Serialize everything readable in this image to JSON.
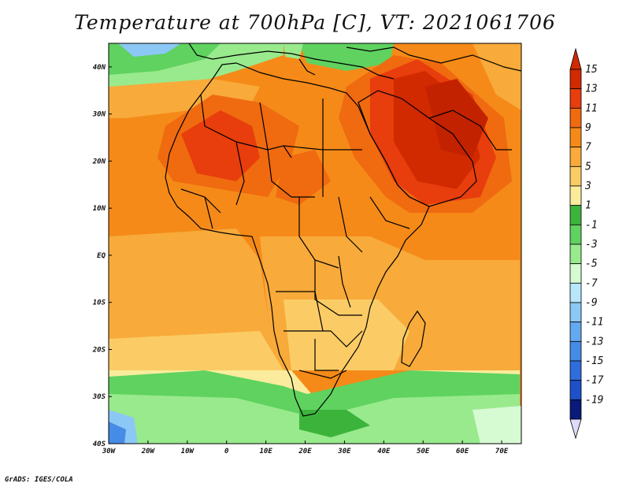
{
  "title": "Temperature at 700hPa [C], VT: 2021061706",
  "credit": "GrADS: IGES/COLA",
  "map": {
    "lon_range": [
      -30,
      75
    ],
    "lat_range": [
      -40,
      45
    ],
    "lon_ticks": [
      {
        "value": -30,
        "label": "30W"
      },
      {
        "value": -20,
        "label": "20W"
      },
      {
        "value": -10,
        "label": "10W"
      },
      {
        "value": 0,
        "label": "0"
      },
      {
        "value": 10,
        "label": "10E"
      },
      {
        "value": 20,
        "label": "20E"
      },
      {
        "value": 30,
        "label": "30E"
      },
      {
        "value": 40,
        "label": "40E"
      },
      {
        "value": 50,
        "label": "50E"
      },
      {
        "value": 60,
        "label": "60E"
      },
      {
        "value": 70,
        "label": "70E"
      }
    ],
    "lat_ticks": [
      {
        "value": 40,
        "label": "40N"
      },
      {
        "value": 30,
        "label": "30N"
      },
      {
        "value": 20,
        "label": "20N"
      },
      {
        "value": 10,
        "label": "10N"
      },
      {
        "value": 0,
        "label": "EQ"
      },
      {
        "value": -10,
        "label": "10S"
      },
      {
        "value": -20,
        "label": "20S"
      },
      {
        "value": -30,
        "label": "30S"
      },
      {
        "value": -40,
        "label": "40S"
      }
    ]
  },
  "colorbar": {
    "levels": [
      {
        "label": "15",
        "color": "#d12a00"
      },
      {
        "label": "13",
        "color": "#e83d0c"
      },
      {
        "label": "11",
        "color": "#f06a10"
      },
      {
        "label": "9",
        "color": "#f58a18"
      },
      {
        "label": "7",
        "color": "#f8aa3a"
      },
      {
        "label": "5",
        "color": "#fbcc66"
      },
      {
        "label": "3",
        "color": "#faec9c"
      },
      {
        "label": "1",
        "color": "#3cb43c"
      },
      {
        "label": "-1",
        "color": "#5fd25f"
      },
      {
        "label": "-3",
        "color": "#98ea8c"
      },
      {
        "label": "-5",
        "color": "#d6fad2"
      },
      {
        "label": "-7",
        "color": "#b8e6fa"
      },
      {
        "label": "-9",
        "color": "#8cc8f5"
      },
      {
        "label": "-11",
        "color": "#64aaf0"
      },
      {
        "label": "-13",
        "color": "#468ce6"
      },
      {
        "label": "-15",
        "color": "#2e6edc"
      },
      {
        "label": "-17",
        "color": "#1e50c8"
      },
      {
        "label": "-19",
        "color": "#0a1a78"
      }
    ],
    "top_arrow_color": "#d12a00",
    "bottom_arrow_color": "#dcdcfa"
  }
}
